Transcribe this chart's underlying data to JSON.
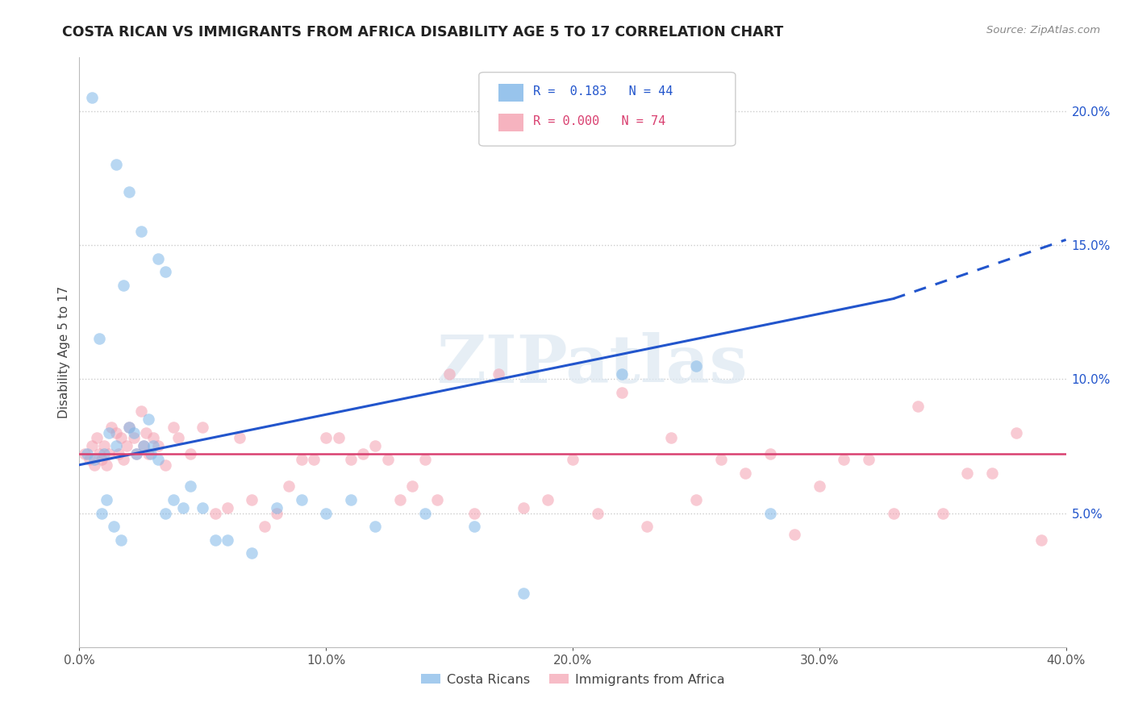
{
  "title": "COSTA RICAN VS IMMIGRANTS FROM AFRICA DISABILITY AGE 5 TO 17 CORRELATION CHART",
  "source": "Source: ZipAtlas.com",
  "xlabel": "",
  "ylabel": "Disability Age 5 to 17",
  "x_min": 0.0,
  "x_max": 40.0,
  "y_min": 0.0,
  "y_max": 22.0,
  "yticks": [
    5.0,
    10.0,
    15.0,
    20.0
  ],
  "xticks": [
    0.0,
    10.0,
    20.0,
    30.0,
    40.0
  ],
  "legend_blue_r": "0.183",
  "legend_blue_n": "44",
  "legend_pink_r": "0.000",
  "legend_pink_n": "74",
  "legend_label_blue": "Costa Ricans",
  "legend_label_pink": "Immigrants from Africa",
  "blue_color": "#7EB6E8",
  "pink_color": "#F4A0B0",
  "trend_blue_color": "#2255CC",
  "trend_pink_color": "#D94070",
  "watermark": "ZIPatlas",
  "blue_scatter_x": [
    0.5,
    1.5,
    2.0,
    2.5,
    1.8,
    3.2,
    3.5,
    0.8,
    1.2,
    1.5,
    2.2,
    2.8,
    3.0,
    0.3,
    0.6,
    0.9,
    1.1,
    1.4,
    1.7,
    2.0,
    2.3,
    2.6,
    2.9,
    3.2,
    3.5,
    3.8,
    4.2,
    4.5,
    5.0,
    5.5,
    6.0,
    7.0,
    8.0,
    9.0,
    10.0,
    11.0,
    12.0,
    14.0,
    16.0,
    18.0,
    22.0,
    25.0,
    28.0,
    1.0
  ],
  "blue_scatter_y": [
    20.5,
    18.0,
    17.0,
    15.5,
    13.5,
    14.5,
    14.0,
    11.5,
    8.0,
    7.5,
    8.0,
    8.5,
    7.5,
    7.2,
    7.0,
    5.0,
    5.5,
    4.5,
    4.0,
    8.2,
    7.2,
    7.5,
    7.2,
    7.0,
    5.0,
    5.5,
    5.2,
    6.0,
    5.2,
    4.0,
    4.0,
    3.5,
    5.2,
    5.5,
    5.0,
    5.5,
    4.5,
    5.0,
    4.5,
    2.0,
    10.2,
    10.5,
    5.0,
    7.2
  ],
  "pink_scatter_x": [
    0.2,
    0.4,
    0.5,
    0.6,
    0.7,
    0.8,
    0.9,
    1.0,
    1.1,
    1.2,
    1.3,
    1.5,
    1.6,
    1.7,
    1.8,
    1.9,
    2.0,
    2.2,
    2.3,
    2.5,
    2.6,
    2.7,
    2.8,
    3.0,
    3.2,
    3.5,
    3.8,
    4.0,
    4.5,
    5.0,
    5.5,
    6.0,
    7.0,
    8.0,
    9.0,
    10.0,
    11.0,
    12.0,
    13.0,
    14.0,
    16.0,
    18.0,
    20.0,
    22.0,
    24.0,
    26.0,
    28.0,
    30.0,
    32.0,
    33.0,
    34.0,
    35.0,
    36.0,
    37.0,
    38.0,
    39.0,
    15.0,
    17.0,
    19.0,
    21.0,
    23.0,
    25.0,
    27.0,
    29.0,
    31.0,
    6.5,
    7.5,
    8.5,
    9.5,
    10.5,
    11.5,
    12.5,
    13.5,
    14.5
  ],
  "pink_scatter_y": [
    7.2,
    7.0,
    7.5,
    6.8,
    7.8,
    7.2,
    7.0,
    7.5,
    6.8,
    7.2,
    8.2,
    8.0,
    7.2,
    7.8,
    7.0,
    7.5,
    8.2,
    7.8,
    7.2,
    8.8,
    7.5,
    8.0,
    7.2,
    7.8,
    7.5,
    6.8,
    8.2,
    7.8,
    7.2,
    8.2,
    5.0,
    5.2,
    5.5,
    5.0,
    7.0,
    7.8,
    7.0,
    7.5,
    5.5,
    7.0,
    5.0,
    5.2,
    7.0,
    9.5,
    7.8,
    7.0,
    7.2,
    6.0,
    7.0,
    5.0,
    9.0,
    5.0,
    6.5,
    6.5,
    8.0,
    4.0,
    10.2,
    10.2,
    5.5,
    5.0,
    4.5,
    5.5,
    6.5,
    4.2,
    7.0,
    7.8,
    4.5,
    6.0,
    7.0,
    7.8,
    7.2,
    7.0,
    6.0,
    5.5
  ],
  "blue_trend_x_start": 0.0,
  "blue_trend_x_end": 33.0,
  "blue_trend_y_start": 6.8,
  "blue_trend_y_end": 13.0,
  "blue_dash_x_start": 33.0,
  "blue_dash_x_end": 40.0,
  "blue_dash_y_start": 13.0,
  "blue_dash_y_end": 15.2,
  "pink_trend_y": 7.2
}
